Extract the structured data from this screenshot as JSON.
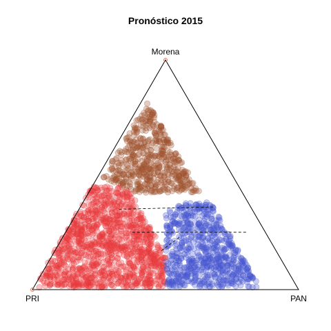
{
  "chart_data": {
    "type": "scatter",
    "subtype": "ternary",
    "title": "Pronóstico 2015",
    "vertices": [
      "PRI",
      "PAN",
      "Morena"
    ],
    "axes_range": [
      0,
      1
    ],
    "grid": false,
    "legend": "none",
    "point_opacity": 0.3,
    "colors": {
      "Morena": "#a0522d",
      "PRI": "#e8393c",
      "PAN": "#4657cf"
    },
    "clusters": [
      {
        "winner": "Morena",
        "count": 520,
        "pri": [
          0.16,
          0.5
        ],
        "morena": [
          0.42,
          0.86
        ],
        "pan_min": 0.02
      },
      {
        "winner": "PRI",
        "count": 1150,
        "pri": [
          0.42,
          0.97
        ],
        "morena": [
          0.01,
          0.45
        ],
        "pan_min": 0.0
      },
      {
        "winner": "PAN",
        "count": 680,
        "pri": [
          0.14,
          0.5
        ],
        "morena": [
          0.01,
          0.38
        ],
        "pan_min": 0.32
      }
    ],
    "dashed_lines": [
      {
        "from": [
          0.5,
          0.15,
          0.35
        ],
        "to": [
          0.14,
          0.5,
          0.36
        ]
      },
      {
        "from": [
          0.5,
          0.25,
          0.25
        ],
        "to": [
          0.07,
          0.68,
          0.25
        ]
      },
      {
        "from": [
          0.43,
          0.4,
          0.17
        ],
        "to": [
          0.33,
          0.44,
          0.23
        ]
      }
    ]
  }
}
